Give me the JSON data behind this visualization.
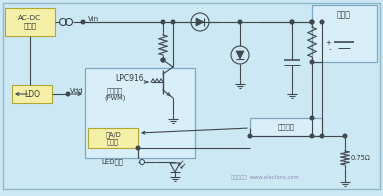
{
  "bg_color": "#cce8f4",
  "box_yellow": "#f5f0a8",
  "box_blue_light": "#d8eef8",
  "edge_yellow": "#b0a830",
  "edge_blue": "#80a8c0",
  "edge_dark": "#607080",
  "lc": "#404850",
  "label_acdc": "AC-DC\n适配器",
  "label_ldo": "LDO",
  "label_lpc": "LPC916",
  "label_pwm": "脉冲控制\n(PWM)",
  "label_adc": "双A/D\n转换器",
  "label_led": "LED控制",
  "label_bat": "电池包",
  "label_curr": "电流检测",
  "label_vin": "Vin",
  "label_vdd": "Vdd",
  "label_075": "0.75Ω",
  "watermark": "电子发烧友  www.elecfans.com"
}
